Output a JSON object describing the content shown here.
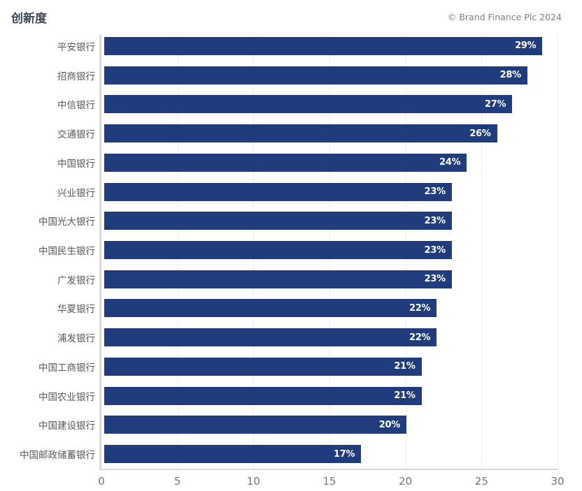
{
  "header": {
    "title": "创新度",
    "copyright": "© Brand Finance Plc 2024"
  },
  "colors": {
    "background": "#ffffff",
    "bar": "#213c7d",
    "title": "#3c4858",
    "copyright": "#7e7e7e",
    "category_label": "#595959",
    "tick_label": "#777777",
    "value_label": "#ffffff",
    "axis_line": "#d9d9d9",
    "gridline": "#ededed"
  },
  "chart_data": {
    "type": "bar",
    "orientation": "horizontal",
    "title": "创新度",
    "categories": [
      "平安银行",
      "招商银行",
      "中信银行",
      "交通银行",
      "中国银行",
      "兴业银行",
      "中国光大银行",
      "中国民生银行",
      "广发银行",
      "华夏银行",
      "浦发银行",
      "中国工商银行",
      "中国农业银行",
      "中国建设银行",
      "中国邮政储蓄银行"
    ],
    "values": [
      29,
      28,
      27,
      26,
      24,
      23,
      23,
      23,
      23,
      22,
      22,
      21,
      21,
      20,
      17
    ],
    "value_labels": [
      "29%",
      "28%",
      "27%",
      "26%",
      "24%",
      "23%",
      "23%",
      "23%",
      "23%",
      "22%",
      "22%",
      "21%",
      "21%",
      "20%",
      "17%"
    ],
    "value_suffix": "%",
    "xlabel": "",
    "ylabel": "",
    "xlim": [
      0,
      30
    ],
    "xticks": [
      0,
      5,
      10,
      15,
      20,
      25,
      30
    ],
    "grid": "vertical",
    "legend": "none",
    "annotation": "© Brand Finance Plc 2024"
  }
}
